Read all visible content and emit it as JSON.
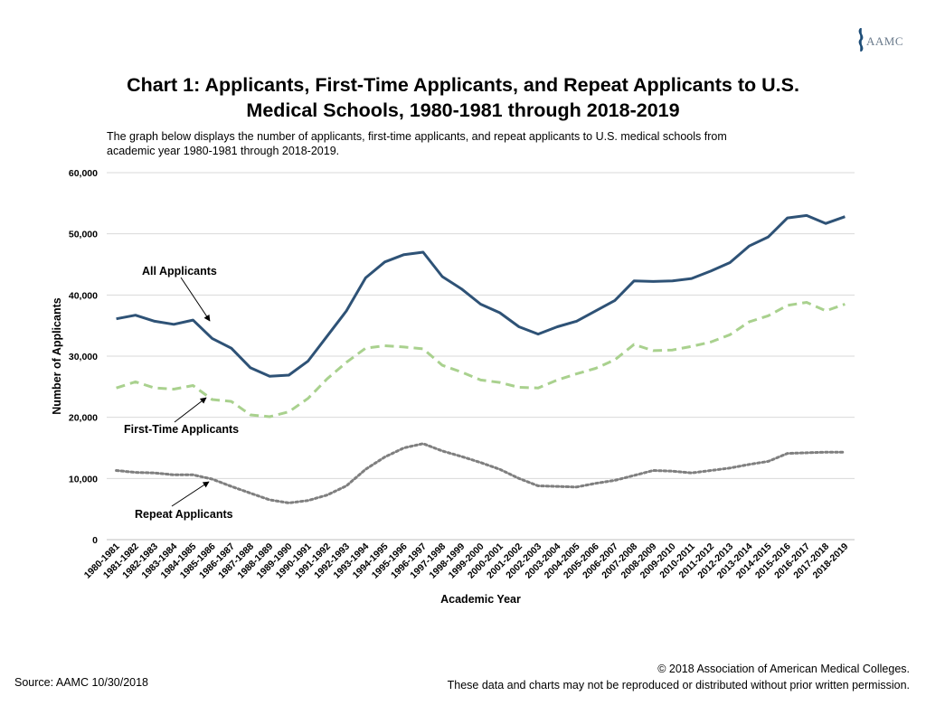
{
  "logo": {
    "text": "AAMC"
  },
  "title_line1": "Chart 1: Applicants, First-Time Applicants, and Repeat Applicants to U.S.",
  "title_line2": "Medical Schools, 1980-1981 through 2018-2019",
  "subtitle": "The graph below displays the number of applicants, first-time applicants, and repeat applicants  to U.S. medical schools from academic year 1980-1981 through 2018-2019.",
  "footer": {
    "source": "Source: AAMC 10/30/2018",
    "copyright": "© 2018 Association of American Medical Colleges.",
    "permission": "These data and charts may not be reproduced or distributed without prior written permission."
  },
  "colors": {
    "all": "#2e5276",
    "first": "#a9d18e",
    "repeat": "#7f7f7f",
    "grid": "#d9d9d9"
  },
  "chart_data": {
    "type": "line",
    "xlabel": "Academic Year",
    "ylabel": "Number of Applicants",
    "ylim": [
      0,
      60000
    ],
    "yticks": [
      0,
      10000,
      20000,
      30000,
      40000,
      50000,
      60000
    ],
    "ytick_labels": [
      "0",
      "10,000",
      "20,000",
      "30,000",
      "40,000",
      "50,000",
      "60,000"
    ],
    "grid": "horizontal",
    "categories": [
      "1980-1981",
      "1981-1982",
      "1982-1983",
      "1983-1984",
      "1984-1985",
      "1985-1986",
      "1986-1987",
      "1987-1988",
      "1988-1989",
      "1989-1990",
      "1990-1991",
      "1991-1992",
      "1992-1993",
      "1993-1994",
      "1994-1995",
      "1995-1996",
      "1996-1997",
      "1997-1998",
      "1998-1999",
      "1999-2000",
      "2000-2001",
      "2001-2002",
      "2002-2003",
      "2003-2004",
      "2004-2005",
      "2005-2006",
      "2006-2007",
      "2007-2008",
      "2008-2009",
      "2009-2010",
      "2010-2011",
      "2011-2012",
      "2012-2013",
      "2013-2014",
      "2014-2015",
      "2015-2016",
      "2016-2017",
      "2017-2018",
      "2018-2019"
    ],
    "series": [
      {
        "name": "All Applicants",
        "style": "solid",
        "values": [
          36100,
          36700,
          35700,
          35200,
          35900,
          32900,
          31300,
          28100,
          26700,
          26900,
          29200,
          33300,
          37400,
          42800,
          45400,
          46600,
          47000,
          43000,
          41000,
          38500,
          37100,
          34800,
          33600,
          34800,
          35700,
          37400,
          39100,
          42300,
          42200,
          42300,
          42700,
          43900,
          45300,
          48000,
          49500,
          52600,
          53000,
          51700,
          52800
        ]
      },
      {
        "name": "First-Time Applicants",
        "style": "dashed",
        "values": [
          24800,
          25800,
          24800,
          24600,
          25200,
          22900,
          22600,
          20400,
          20100,
          20900,
          23100,
          26300,
          29000,
          31300,
          31700,
          31500,
          31200,
          28500,
          27400,
          26100,
          25700,
          24900,
          24800,
          26100,
          27100,
          28000,
          29400,
          31900,
          30900,
          31000,
          31600,
          32300,
          33500,
          35600,
          36600,
          38300,
          38800,
          37400,
          38500
        ]
      },
      {
        "name": "Repeat Applicants",
        "style": "dotted",
        "values": [
          11300,
          11000,
          10900,
          10600,
          10600,
          9900,
          8700,
          7600,
          6500,
          6000,
          6400,
          7300,
          8800,
          11500,
          13500,
          15000,
          15700,
          14500,
          13600,
          12600,
          11500,
          10000,
          8800,
          8700,
          8600,
          9200,
          9700,
          10500,
          11300,
          11200,
          10900,
          11300,
          11700,
          12300,
          12800,
          14100,
          14200,
          14300,
          14300
        ]
      }
    ],
    "annotations": [
      {
        "text": "All Applicants",
        "series": "All Applicants"
      },
      {
        "text": "First-Time Applicants",
        "series": "First-Time Applicants"
      },
      {
        "text": "Repeat Applicants",
        "series": "Repeat Applicants"
      }
    ]
  }
}
